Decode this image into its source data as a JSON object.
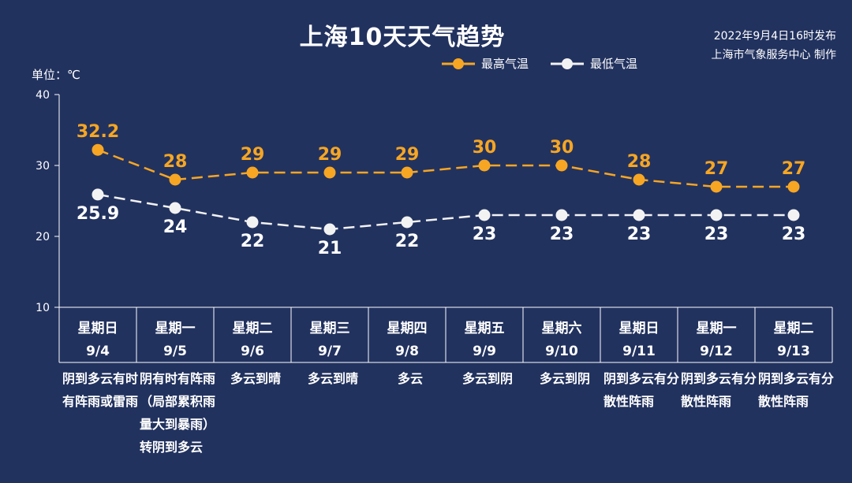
{
  "title": "上海10天天气趋势",
  "publish": {
    "line1": "2022年9月4日16时发布",
    "line2": "上海市气象服务中心 制作"
  },
  "unit_label": "单位：℃",
  "colors": {
    "background": "#22325f",
    "high": "#f6a623",
    "low": "#f2f2f2"
  },
  "chart_data": {
    "type": "line",
    "ylim": [
      10,
      40
    ],
    "yticks": [
      10,
      20,
      30,
      40
    ],
    "grid": false,
    "legend_position": "top-right",
    "categories": [
      "星期日",
      "星期一",
      "星期二",
      "星期三",
      "星期四",
      "星期五",
      "星期六",
      "星期日",
      "星期一",
      "星期二"
    ],
    "dates": [
      "9/4",
      "9/5",
      "9/6",
      "9/7",
      "9/8",
      "9/9",
      "9/10",
      "9/11",
      "9/12",
      "9/13"
    ],
    "series": [
      {
        "name": "最高气温",
        "values": [
          32.2,
          28,
          29,
          29,
          29,
          30,
          30,
          28,
          27,
          27
        ],
        "labels": [
          "32.2",
          "28",
          "29",
          "29",
          "29",
          "30",
          "30",
          "28",
          "27",
          "27"
        ]
      },
      {
        "name": "最低气温",
        "values": [
          25.9,
          24,
          22,
          21,
          22,
          23,
          23,
          23,
          23,
          23
        ],
        "labels": [
          "25.9",
          "24",
          "22",
          "21",
          "22",
          "23",
          "23",
          "23",
          "23",
          "23"
        ]
      }
    ],
    "weather": [
      "阴到多云有时有阵雨或雷雨",
      "阴有时有阵雨（局部累积雨量大到暴雨）转阴到多云",
      "多云到晴",
      "多云到晴",
      "多云",
      "多云到阴",
      "多云到阴",
      "阴到多云有分散性阵雨",
      "阴到多云有分散性阵雨",
      "阴到多云有分散性阵雨"
    ]
  }
}
